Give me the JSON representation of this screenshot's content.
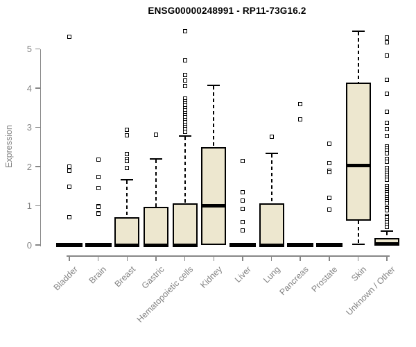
{
  "title": "ENSG00000248991 - RP11-73G16.2",
  "chart_data": {
    "type": "boxplot",
    "title": "ENSG00000248991 - RP11-73G16.2",
    "xlabel": "",
    "ylabel": "Expression",
    "ylim": [
      0,
      5.5
    ],
    "yticks": [
      0,
      1,
      2,
      3,
      4,
      5
    ],
    "grid": false,
    "legend": "none",
    "box_fill_color": "#EDE7CF",
    "box_border_color": "#000000",
    "axis_color": "#878787",
    "label_color": "#848484",
    "categories": [
      "Bladder",
      "Brain",
      "Breast",
      "Gastric",
      "Hematopoietic cells",
      "Kidney",
      "Liver",
      "Lung",
      "Pancreas",
      "Prostate",
      "Skin",
      "Unknown / Other"
    ],
    "boxes": [
      {
        "label": "Bladder",
        "q1": 0,
        "median": 0,
        "q3": 0,
        "whisker_low": 0,
        "whisker_high": 0,
        "outliers": [
          5.31,
          2.0,
          1.9,
          1.49,
          0.7
        ]
      },
      {
        "label": "Brain",
        "q1": 0,
        "median": 0,
        "q3": 0,
        "whisker_low": 0,
        "whisker_high": 0,
        "outliers": [
          2.17,
          1.73,
          1.46,
          1.0,
          0.97,
          0.82,
          0.79
        ]
      },
      {
        "label": "Breast",
        "q1": 0,
        "median": 0,
        "q3": 0.7,
        "whisker_low": 0,
        "whisker_high": 1.67,
        "outliers": [
          2.94,
          2.79,
          2.32,
          2.2,
          2.14,
          1.96
        ]
      },
      {
        "label": "Gastric",
        "q1": 0,
        "median": 0,
        "q3": 0.97,
        "whisker_low": 0,
        "whisker_high": 2.2,
        "outliers": [
          2.81
        ]
      },
      {
        "label": "Hematopoietic cells",
        "q1": 0,
        "median": 0,
        "q3": 1.07,
        "whisker_low": 0,
        "whisker_high": 2.78,
        "outliers": [
          5.45,
          4.7,
          4.33,
          4.2,
          4.06,
          3.73,
          3.67,
          3.61,
          3.55,
          3.49,
          3.43,
          3.37,
          3.31,
          3.25,
          3.19,
          3.13,
          3.07,
          3.01,
          2.95,
          2.88
        ]
      },
      {
        "label": "Kidney",
        "q1": 0,
        "median": 1.0,
        "q3": 2.5,
        "whisker_low": 0,
        "whisker_high": 4.07,
        "outliers": []
      },
      {
        "label": "Liver",
        "q1": 0,
        "median": 0,
        "q3": 0,
        "whisker_low": 0,
        "whisker_high": 0,
        "outliers": [
          2.14,
          1.35,
          1.14,
          0.92,
          0.58,
          0.37
        ]
      },
      {
        "label": "Lung",
        "q1": 0,
        "median": 0,
        "q3": 1.06,
        "whisker_low": 0,
        "whisker_high": 2.33,
        "outliers": [
          2.76
        ]
      },
      {
        "label": "Pancreas",
        "q1": 0,
        "median": 0,
        "q3": 0,
        "whisker_low": 0,
        "whisker_high": 0,
        "outliers": [
          3.59,
          3.2
        ]
      },
      {
        "label": "Prostate",
        "q1": 0,
        "median": 0,
        "q3": 0,
        "whisker_low": 0,
        "whisker_high": 0,
        "outliers": [
          2.58,
          2.08,
          1.9,
          1.85,
          1.2,
          0.91
        ]
      },
      {
        "label": "Skin",
        "q1": 0.62,
        "median": 2.03,
        "q3": 4.14,
        "whisker_low": 0.02,
        "whisker_high": 5.45,
        "outliers": []
      },
      {
        "label": "Unknown / Other",
        "q1": 0.01,
        "median": 0.03,
        "q3": 0.17,
        "whisker_low": 0,
        "whisker_high": 0.35,
        "outliers": [
          5.3,
          5.16,
          4.84,
          4.22,
          3.85,
          3.39,
          3.12,
          2.95,
          2.77,
          2.51,
          2.46,
          2.4,
          2.34,
          2.19,
          2.12,
          1.96,
          1.9,
          1.84,
          1.78,
          1.72,
          1.66,
          1.51,
          1.46,
          1.4,
          1.35,
          1.29,
          1.23,
          1.17,
          1.12,
          1.06,
          0.93,
          0.88,
          0.75,
          0.7,
          0.64,
          0.58,
          0.52,
          0.46
        ]
      }
    ]
  }
}
